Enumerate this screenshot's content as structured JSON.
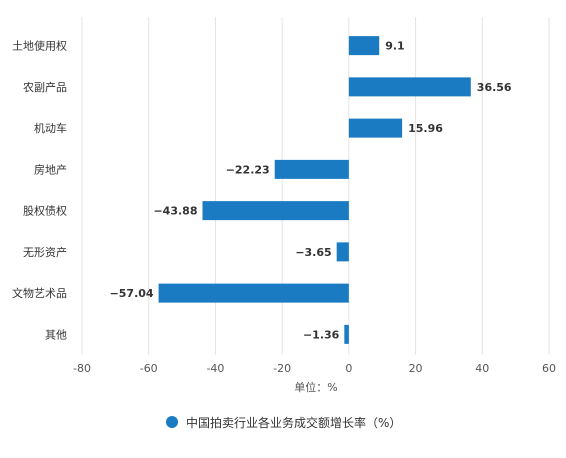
{
  "chart_data": {
    "type": "bar",
    "orientation": "horizontal",
    "categories": [
      "土地使用权",
      "农副产品",
      "机动车",
      "房地产",
      "股权债权",
      "无形资产",
      "文物艺术品",
      "其他"
    ],
    "series": [
      {
        "name": "中国拍卖行业各业务成交额增长率（%）",
        "values": [
          9.1,
          36.56,
          15.96,
          -22.23,
          -43.88,
          -3.65,
          -57.04,
          -1.36
        ]
      }
    ],
    "data_labels": [
      "9.1",
      "36.56",
      "15.96",
      "−22.23",
      "−43.88",
      "−3.65",
      "−57.04",
      "−1.36"
    ],
    "xticks": [
      -80,
      -60,
      -40,
      -20,
      0,
      20,
      40,
      60
    ],
    "xlim": [
      -80,
      60
    ],
    "xlabel": "单位：%",
    "grid": "vertical",
    "legend_position": "bottom",
    "colors": {
      "bar": "#1a7bc3",
      "grid": "#e3e3e3"
    }
  }
}
